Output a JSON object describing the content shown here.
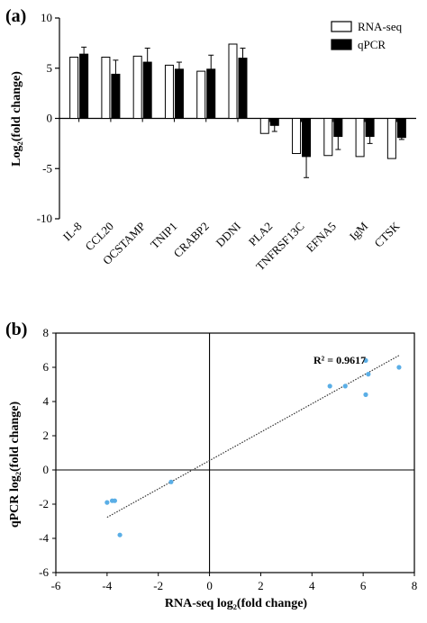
{
  "chart_data": [
    {
      "type": "bar",
      "panel_label": "(a)",
      "ylabel": "Log₂(fold change)",
      "ylim": [
        -10,
        10
      ],
      "yticks": [
        -10,
        -5,
        0,
        5,
        10
      ],
      "categories": [
        "IL-8",
        "CCL20",
        "OCSTAMP",
        "TNIP1",
        "CRABP2",
        "DDNI",
        "PLA2",
        "TNFRSF13C",
        "EFNA5",
        "IgM",
        "CTSK"
      ],
      "series": [
        {
          "name": "RNA-seq",
          "color": "#ffffff",
          "values": [
            6.1,
            6.1,
            6.2,
            5.3,
            4.7,
            7.4,
            -1.5,
            -3.5,
            -3.7,
            -3.8,
            -4.0
          ],
          "errors": [
            0,
            0,
            0,
            0,
            0,
            0,
            0,
            0,
            0,
            0,
            0
          ]
        },
        {
          "name": "qPCR",
          "color": "#000000",
          "values": [
            6.4,
            4.4,
            5.6,
            4.9,
            4.9,
            6.0,
            -0.7,
            -3.8,
            -1.8,
            -1.8,
            -1.9
          ],
          "errors": [
            0.7,
            1.4,
            1.4,
            0.7,
            1.4,
            1.0,
            0.6,
            2.1,
            1.3,
            0.7,
            0.2
          ]
        }
      ],
      "legend_position": "top-right"
    },
    {
      "type": "scatter",
      "panel_label": "(b)",
      "xlabel": "RNA-seq log₂(fold change)",
      "ylabel": "qPCR log₂(fold change)",
      "xlim": [
        -6,
        8
      ],
      "ylim": [
        -6,
        8
      ],
      "xticks": [
        -6,
        -4,
        -2,
        0,
        2,
        4,
        6,
        8
      ],
      "yticks": [
        -6,
        -4,
        -2,
        0,
        2,
        4,
        6,
        8
      ],
      "points": [
        {
          "x": 6.1,
          "y": 6.4
        },
        {
          "x": 6.1,
          "y": 4.4
        },
        {
          "x": 6.2,
          "y": 5.6
        },
        {
          "x": 5.3,
          "y": 4.9
        },
        {
          "x": 4.7,
          "y": 4.9
        },
        {
          "x": 7.4,
          "y": 6.0
        },
        {
          "x": -1.5,
          "y": -0.7
        },
        {
          "x": -3.5,
          "y": -3.8
        },
        {
          "x": -3.7,
          "y": -1.8
        },
        {
          "x": -3.8,
          "y": -1.8
        },
        {
          "x": -4.0,
          "y": -1.9
        }
      ],
      "point_color": "#5aaee6",
      "trendline": {
        "slope": 0.83,
        "intercept": 0.55,
        "x_range": [
          -4.0,
          7.4
        ]
      },
      "annotation": "R² = 0.9617"
    }
  ]
}
